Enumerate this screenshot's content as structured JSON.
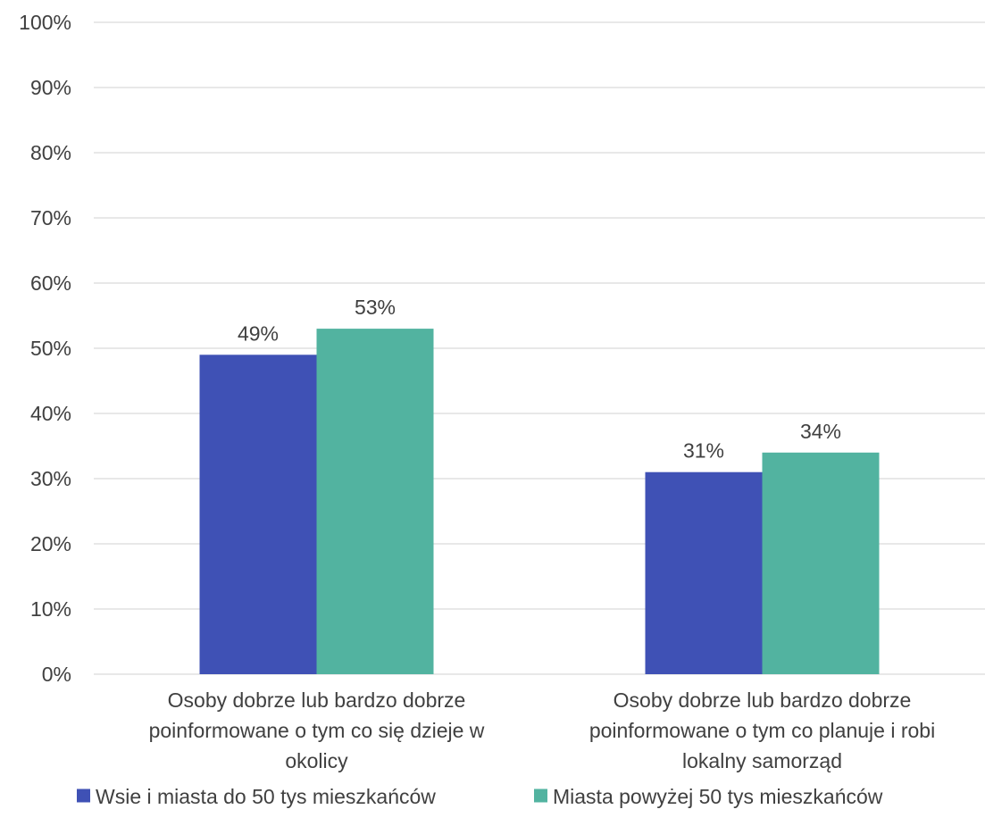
{
  "chart_data": {
    "type": "bar",
    "title": "",
    "xlabel": "",
    "ylabel": "",
    "ylim": [
      0,
      100
    ],
    "yticks": [
      0,
      10,
      20,
      30,
      40,
      50,
      60,
      70,
      80,
      90,
      100
    ],
    "ytick_format": "percent",
    "grid": true,
    "legend_position": "bottom",
    "categories": [
      [
        "Osoby dobrze lub bardzo dobrze",
        "poinformowane o tym co się dzieje w",
        "okolicy"
      ],
      [
        "Osoby dobrze lub bardzo dobrze",
        "poinformowane o tym co planuje i robi",
        "lokalny samorząd"
      ]
    ],
    "series": [
      {
        "name": "Wsie i miasta do 50 tys mieszkańców",
        "color": "#3F51B5",
        "values": [
          49,
          31
        ],
        "labels": [
          "49%",
          "31%"
        ]
      },
      {
        "name": "Miasta powyżej 50 tys mieszkańców",
        "color": "#52B3A0",
        "values": [
          53,
          34
        ],
        "labels": [
          "53%",
          "34%"
        ]
      }
    ]
  }
}
